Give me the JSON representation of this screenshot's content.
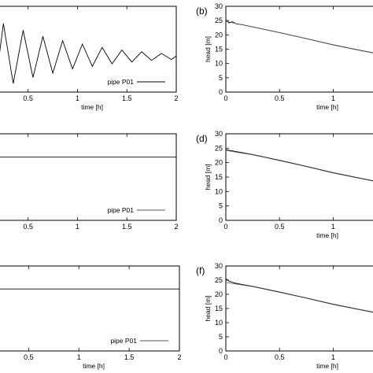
{
  "chart_data": [
    {
      "panel": "",
      "type": "line",
      "xlabel": "time [h]",
      "ylabel": "",
      "xlim": [
        0.2,
        2
      ],
      "xticks": [
        "0.5",
        "1",
        "1.5",
        "2"
      ],
      "yticks": [],
      "legend": "pipe P01",
      "legend_position": "bottom-right",
      "series": [
        {
          "x": [
            0.2,
            0.25,
            0.35,
            0.45,
            0.55,
            0.65,
            0.75,
            0.85,
            0.95,
            1.05,
            1.15,
            1.25,
            1.35,
            1.45,
            1.55,
            1.65,
            1.75,
            1.85,
            1.95,
            2.0
          ],
          "y": [
            0.35,
            0.8,
            0.1,
            0.72,
            0.17,
            0.65,
            0.22,
            0.6,
            0.27,
            0.56,
            0.3,
            0.52,
            0.33,
            0.49,
            0.35,
            0.47,
            0.37,
            0.45,
            0.38,
            0.42
          ]
        }
      ]
    },
    {
      "panel": "(b)",
      "type": "line",
      "xlabel": "time [h]",
      "ylabel": "head [m]",
      "xlim": [
        0,
        1.4
      ],
      "ylim": [
        0,
        30
      ],
      "xticks": [
        "0",
        "0.5",
        "1"
      ],
      "yticks": [
        "0",
        "5",
        "10",
        "15",
        "20",
        "25",
        "30"
      ],
      "legend": "",
      "series": [
        {
          "x": [
            0,
            0.03,
            0.06,
            0.1,
            0.15,
            0.25,
            0.5,
            0.75,
            1.0,
            1.25,
            1.4
          ],
          "y": [
            25.2,
            24.2,
            24.6,
            23.8,
            23.6,
            22.8,
            20.8,
            18.7,
            16.5,
            14.6,
            13.5
          ]
        },
        {
          "x": [
            0,
            0.05,
            0.1,
            0.15,
            0.25,
            0.5,
            0.75,
            1.0,
            1.25,
            1.4
          ],
          "y": [
            24.8,
            24.3,
            23.9,
            23.6,
            22.8,
            20.8,
            18.7,
            16.5,
            14.6,
            13.5
          ]
        }
      ]
    },
    {
      "panel": "",
      "type": "line",
      "xlabel": "",
      "ylabel": "",
      "xlim": [
        0.2,
        2
      ],
      "xticks": [
        "0.5",
        "1",
        "1.5",
        "2"
      ],
      "yticks": [],
      "legend": "pipe P01",
      "legend_position": "bottom-right",
      "series": [
        {
          "x": [
            0.2,
            2.0
          ],
          "y": [
            0.73,
            0.73
          ]
        }
      ]
    },
    {
      "panel": "(d)",
      "type": "line",
      "xlabel": "time [h]",
      "ylabel": "head [m]",
      "xlim": [
        0,
        1.4
      ],
      "ylim": [
        0,
        30
      ],
      "xticks": [
        "0",
        "0.5",
        "1"
      ],
      "yticks": [
        "0",
        "5",
        "10",
        "15",
        "20",
        "25",
        "30"
      ],
      "legend": "",
      "series": [
        {
          "x": [
            0,
            0.25,
            0.5,
            0.75,
            1.0,
            1.25,
            1.4
          ],
          "y": [
            24.5,
            22.8,
            20.8,
            18.7,
            16.5,
            14.6,
            13.5
          ]
        },
        {
          "x": [
            0,
            0.25,
            0.5,
            0.75,
            1.0,
            1.25,
            1.4
          ],
          "y": [
            24.2,
            22.7,
            20.7,
            18.6,
            16.4,
            14.5,
            13.4
          ]
        }
      ]
    },
    {
      "panel": "",
      "type": "line",
      "xlabel": "time [h]",
      "ylabel": "",
      "xlim": [
        0.2,
        2
      ],
      "xticks": [
        "0.5",
        "1",
        "1.5",
        "2"
      ],
      "yticks": [],
      "legend": "pipe P01",
      "legend_position": "bottom-right",
      "series": [
        {
          "x": [
            0.2,
            2.0
          ],
          "y": [
            0.73,
            0.73
          ]
        }
      ]
    },
    {
      "panel": "(f)",
      "type": "line",
      "xlabel": "time [h]",
      "ylabel": "head [m]",
      "xlim": [
        0,
        1.4
      ],
      "ylim": [
        0,
        30
      ],
      "xticks": [
        "0",
        "0.5",
        "1"
      ],
      "yticks": [
        "0",
        "5",
        "10",
        "15",
        "20",
        "25",
        "30"
      ],
      "legend": "",
      "series": [
        {
          "x": [
            0,
            0.03,
            0.08,
            0.15,
            0.25,
            0.5,
            0.75,
            1.0,
            1.25,
            1.4
          ],
          "y": [
            25.5,
            24.6,
            24.0,
            23.5,
            22.8,
            20.8,
            18.7,
            16.5,
            14.6,
            13.5
          ]
        },
        {
          "x": [
            0,
            0.1,
            0.25,
            0.5,
            0.75,
            1.0,
            1.25,
            1.4
          ],
          "y": [
            24.2,
            23.6,
            22.7,
            20.7,
            18.6,
            16.4,
            14.5,
            13.4
          ]
        }
      ]
    }
  ]
}
